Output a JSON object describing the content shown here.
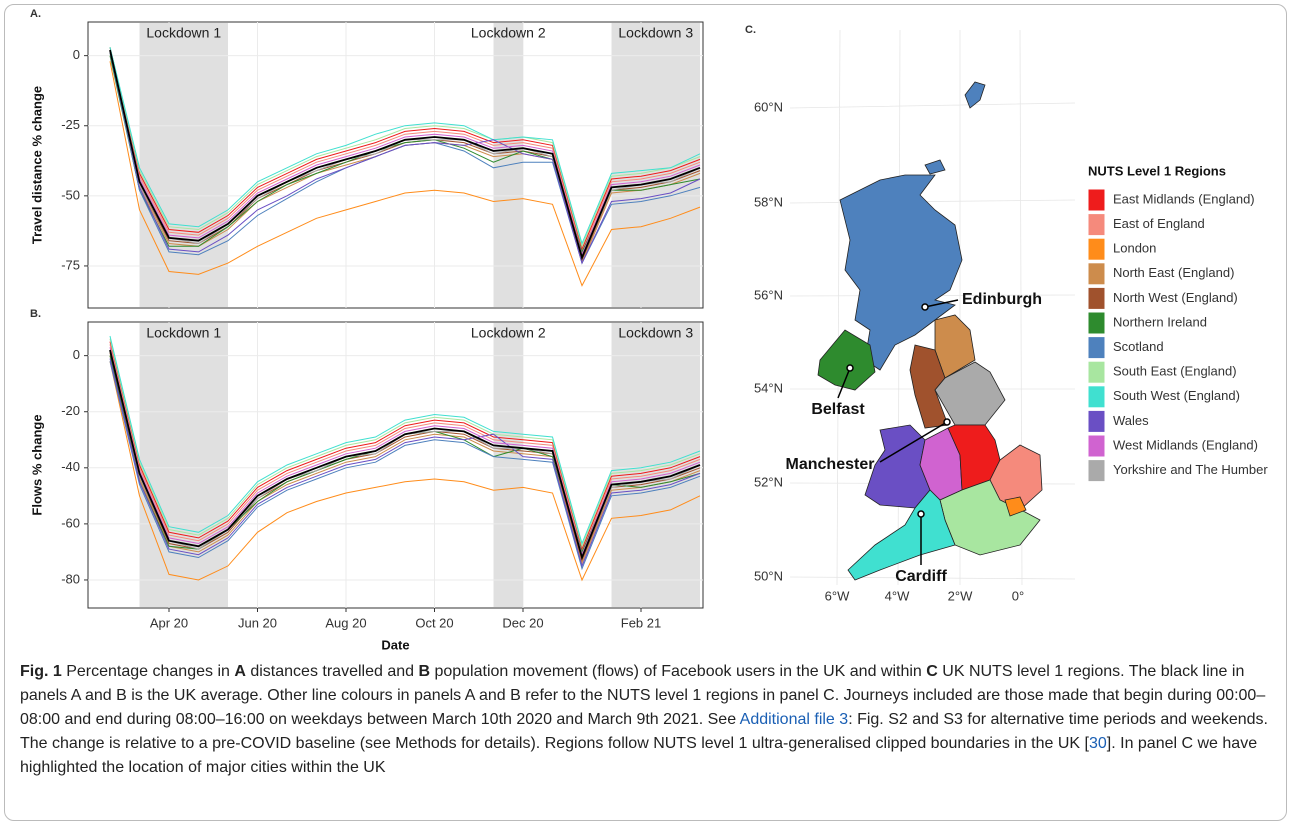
{
  "chart_data": [
    {
      "type": "line",
      "panel_label": "A.",
      "y_label": "Travel distance % change",
      "ylim": [
        -90,
        12
      ],
      "yticks": [
        0,
        -25,
        -50,
        -75
      ],
      "grid": true,
      "spans": [
        {
          "label": "Lockdown 1",
          "start": 1,
          "end": 4
        },
        {
          "label": "Lockdown 2",
          "start": 13,
          "end": 14
        },
        {
          "label": "Lockdown 3",
          "start": 17,
          "end": 20
        }
      ],
      "series": [
        {
          "name": "East Midlands (England)",
          "color": "#ee1c1c",
          "values": [
            3,
            -42,
            -62,
            -63,
            -57,
            -47,
            -42,
            -37,
            -34,
            -31,
            -27,
            -26,
            -27,
            -31,
            -30,
            -32,
            -69,
            -44,
            -43,
            -41,
            -37
          ]
        },
        {
          "name": "East of England",
          "color": "#f58a7c",
          "values": [
            2,
            -43,
            -63,
            -64,
            -58,
            -48,
            -43,
            -38,
            -35,
            -32,
            -28,
            -27,
            -28,
            -32,
            -31,
            -33,
            -70,
            -45,
            -44,
            -42,
            -38
          ]
        },
        {
          "name": "London",
          "color": "#ff8c1a",
          "values": [
            -2,
            -55,
            -77,
            -78,
            -74,
            -68,
            -63,
            -58,
            -55,
            -52,
            -49,
            -48,
            -49,
            -52,
            -51,
            -53,
            -82,
            -62,
            -61,
            -58,
            -54
          ]
        },
        {
          "name": "North East (England)",
          "color": "#cd8c4c",
          "values": [
            1,
            -47,
            -67,
            -68,
            -62,
            -52,
            -47,
            -42,
            -39,
            -36,
            -32,
            -31,
            -32,
            -36,
            -35,
            -37,
            -74,
            -49,
            -48,
            -46,
            -42
          ]
        },
        {
          "name": "North West (England)",
          "color": "#a0522d",
          "values": [
            2,
            -46,
            -66,
            -67,
            -61,
            -51,
            -46,
            -41,
            -38,
            -35,
            -31,
            -30,
            -31,
            -35,
            -34,
            -36,
            -73,
            -48,
            -47,
            -45,
            -41
          ]
        },
        {
          "name": "Northern Ireland",
          "color": "#2e8b2e",
          "values": [
            0,
            -48,
            -68,
            -68,
            -61,
            -52,
            -46,
            -42,
            -38,
            -34,
            -31,
            -30,
            -33,
            -38,
            -34,
            -37,
            -70,
            -48,
            -48,
            -46,
            -44
          ]
        },
        {
          "name": "Scotland",
          "color": "#4e81bd",
          "values": [
            1,
            -48,
            -70,
            -71,
            -66,
            -57,
            -51,
            -45,
            -40,
            -36,
            -32,
            -31,
            -34,
            -40,
            -38,
            -38,
            -74,
            -53,
            -52,
            -50,
            -47
          ]
        },
        {
          "name": "South East (England)",
          "color": "#a8e6a0",
          "values": [
            3,
            -41,
            -61,
            -62,
            -56,
            -46,
            -41,
            -36,
            -33,
            -30,
            -26,
            -25,
            -26,
            -30,
            -29,
            -31,
            -68,
            -43,
            -42,
            -40,
            -36
          ]
        },
        {
          "name": "South West (England)",
          "color": "#40e0d0",
          "values": [
            3,
            -40,
            -60,
            -61,
            -55,
            -45,
            -40,
            -35,
            -32,
            -28,
            -25,
            -24,
            -25,
            -30,
            -29,
            -30,
            -67,
            -42,
            -41,
            -40,
            -35
          ]
        },
        {
          "name": "Wales",
          "color": "#6a4fc4",
          "values": [
            2,
            -47,
            -69,
            -70,
            -64,
            -55,
            -50,
            -44,
            -40,
            -36,
            -32,
            -31,
            -32,
            -30,
            -35,
            -37,
            -74,
            -52,
            -51,
            -49,
            -44
          ]
        },
        {
          "name": "West Midlands (England)",
          "color": "#d063d0",
          "values": [
            2,
            -44,
            -64,
            -65,
            -59,
            -49,
            -44,
            -39,
            -36,
            -33,
            -29,
            -28,
            -29,
            -33,
            -32,
            -34,
            -71,
            -46,
            -45,
            -43,
            -39
          ]
        },
        {
          "name": "Yorkshire and The Humber",
          "color": "#aaaaaa",
          "values": [
            2,
            -46,
            -65,
            -67,
            -60,
            -51,
            -45,
            -41,
            -37,
            -35,
            -30,
            -30,
            -30,
            -35,
            -33,
            -36,
            -72,
            -48,
            -46,
            -45,
            -40
          ]
        },
        {
          "name": "UK average",
          "color": "#000000",
          "values": [
            2,
            -45,
            -65,
            -66,
            -60,
            -50,
            -45,
            -40,
            -37,
            -34,
            -30,
            -29,
            -30,
            -34,
            -33,
            -35,
            -72,
            -47,
            -46,
            -44,
            -40
          ]
        }
      ]
    },
    {
      "type": "line",
      "panel_label": "B.",
      "y_label": "Flows % change",
      "x_label": "Date",
      "categories": [
        null,
        null,
        "Apr 20",
        null,
        null,
        "Jun 20",
        null,
        null,
        "Aug 20",
        null,
        null,
        "Oct 20",
        null,
        null,
        "Dec 20",
        null,
        null,
        null,
        "Feb 21",
        null,
        null
      ],
      "ylim": [
        -90,
        12
      ],
      "yticks": [
        0,
        -20,
        -40,
        -60,
        -80
      ],
      "grid": true,
      "spans": [
        {
          "label": "Lockdown 1",
          "start": 1,
          "end": 4
        },
        {
          "label": "Lockdown 2",
          "start": 13,
          "end": 14
        },
        {
          "label": "Lockdown 3",
          "start": 17,
          "end": 20
        }
      ],
      "series": [
        {
          "name": "East Midlands (England)",
          "color": "#ee1c1c",
          "values": [
            5,
            -39,
            -63,
            -65,
            -59,
            -47,
            -41,
            -37,
            -33,
            -31,
            -25,
            -23,
            -24,
            -29,
            -30,
            -31,
            -69,
            -43,
            -42,
            -40,
            -36
          ]
        },
        {
          "name": "East of England",
          "color": "#f58a7c",
          "values": [
            4,
            -40,
            -64,
            -66,
            -60,
            -48,
            -42,
            -38,
            -34,
            -32,
            -26,
            -24,
            -25,
            -30,
            -31,
            -32,
            -70,
            -44,
            -43,
            -41,
            -37
          ]
        },
        {
          "name": "London",
          "color": "#ff8c1a",
          "values": [
            -2,
            -50,
            -78,
            -80,
            -75,
            -63,
            -56,
            -52,
            -49,
            -47,
            -45,
            -44,
            -45,
            -48,
            -47,
            -49,
            -80,
            -58,
            -57,
            -55,
            -50
          ]
        },
        {
          "name": "North East (England)",
          "color": "#cd8c4c",
          "values": [
            0,
            -44,
            -68,
            -70,
            -64,
            -52,
            -46,
            -42,
            -38,
            -36,
            -30,
            -28,
            -29,
            -34,
            -35,
            -36,
            -74,
            -48,
            -47,
            -45,
            -41
          ]
        },
        {
          "name": "North West (England)",
          "color": "#a0522d",
          "values": [
            1,
            -43,
            -67,
            -69,
            -63,
            -51,
            -45,
            -41,
            -37,
            -35,
            -29,
            -27,
            -28,
            -33,
            -34,
            -35,
            -73,
            -47,
            -46,
            -44,
            -40
          ]
        },
        {
          "name": "Northern Ireland",
          "color": "#2e8b2e",
          "values": [
            0,
            -45,
            -68,
            -69,
            -62,
            -52,
            -45,
            -41,
            -37,
            -34,
            -28,
            -27,
            -30,
            -36,
            -33,
            -36,
            -70,
            -46,
            -47,
            -45,
            -42
          ]
        },
        {
          "name": "Scotland",
          "color": "#4e81bd",
          "values": [
            -2,
            -46,
            -70,
            -72,
            -66,
            -54,
            -48,
            -44,
            -40,
            -38,
            -32,
            -30,
            -31,
            -36,
            -37,
            -38,
            -76,
            -50,
            -49,
            -47,
            -43
          ]
        },
        {
          "name": "South East (England)",
          "color": "#a8e6a0",
          "values": [
            6,
            -38,
            -62,
            -64,
            -58,
            -46,
            -40,
            -36,
            -32,
            -30,
            -24,
            -22,
            -23,
            -28,
            -29,
            -30,
            -68,
            -42,
            -41,
            -39,
            -35
          ]
        },
        {
          "name": "South West (England)",
          "color": "#40e0d0",
          "values": [
            7,
            -37,
            -61,
            -63,
            -57,
            -45,
            -39,
            -35,
            -31,
            -29,
            -23,
            -21,
            -22,
            -27,
            -28,
            -29,
            -67,
            -41,
            -40,
            -38,
            -34
          ]
        },
        {
          "name": "Wales",
          "color": "#6a4fc4",
          "values": [
            -1,
            -45,
            -69,
            -71,
            -65,
            -53,
            -47,
            -43,
            -39,
            -37,
            -31,
            -29,
            -30,
            -28,
            -36,
            -37,
            -75,
            -49,
            -48,
            -46,
            -42
          ]
        },
        {
          "name": "West Midlands (England)",
          "color": "#d063d0",
          "values": [
            3,
            -41,
            -65,
            -67,
            -61,
            -49,
            -43,
            -39,
            -35,
            -33,
            -27,
            -25,
            -26,
            -31,
            -32,
            -33,
            -71,
            -45,
            -44,
            -42,
            -38
          ]
        },
        {
          "name": "Yorkshire and The Humber",
          "color": "#aaaaaa",
          "values": [
            2,
            -43,
            -66,
            -69,
            -62,
            -51,
            -44,
            -41,
            -36,
            -35,
            -28,
            -27,
            -27,
            -33,
            -33,
            -35,
            -72,
            -47,
            -45,
            -44,
            -39
          ]
        },
        {
          "name": "UK average",
          "color": "#000000",
          "values": [
            2,
            -42,
            -66,
            -68,
            -62,
            -50,
            -44,
            -40,
            -36,
            -34,
            -28,
            -26,
            -27,
            -32,
            -33,
            -34,
            -72,
            -46,
            -45,
            -43,
            -39
          ]
        }
      ]
    },
    {
      "type": "map",
      "panel_label": "C.",
      "legend_title": "NUTS Level 1 Regions",
      "lat_labels": [
        "60°N",
        "58°N",
        "56°N",
        "54°N",
        "52°N",
        "50°N"
      ],
      "lon_labels": [
        "6°W",
        "4°W",
        "2°W",
        "0°"
      ],
      "cities": [
        "Edinburgh",
        "Belfast",
        "Manchester",
        "Cardiff"
      ],
      "regions": [
        {
          "name": "East Midlands (England)",
          "color": "#ee1c1c"
        },
        {
          "name": "East of England",
          "color": "#f58a7c"
        },
        {
          "name": "London",
          "color": "#ff8c1a"
        },
        {
          "name": "North East (England)",
          "color": "#cd8c4c"
        },
        {
          "name": "North West (England)",
          "color": "#a0522d"
        },
        {
          "name": "Northern Ireland",
          "color": "#2e8b2e"
        },
        {
          "name": "Scotland",
          "color": "#4e81bd"
        },
        {
          "name": "South East (England)",
          "color": "#a8e6a0"
        },
        {
          "name": "South West (England)",
          "color": "#40e0d0"
        },
        {
          "name": "Wales",
          "color": "#6a4fc4"
        },
        {
          "name": "West Midlands (England)",
          "color": "#d063d0"
        },
        {
          "name": "Yorkshire and The Humber",
          "color": "#aaaaaa"
        }
      ]
    }
  ],
  "caption": [
    {
      "text": "Fig. 1",
      "style": "bold"
    },
    {
      "text": "  Percentage changes in "
    },
    {
      "text": "A",
      "style": "bold"
    },
    {
      "text": " distances travelled and "
    },
    {
      "text": "B",
      "style": "bold"
    },
    {
      "text": " population movement (flows) of Facebook users in the UK and within "
    },
    {
      "text": "C",
      "style": "bold"
    },
    {
      "text": " UK NUTS level 1 regions. The black line in panels A and B is the UK average. Other line colours in panels A and B refer to the NUTS level 1 regions in panel C. Journeys included are those made that begin during 00:00–08:00 and end during 08:00–16:00 on weekdays between March 10th 2020 and March 9th 2021. See "
    },
    {
      "text": "Additional file",
      "style": "link"
    },
    {
      "text": " "
    },
    {
      "text": "3",
      "style": "link"
    },
    {
      "text": ": Fig. S2 and S3 for alternative time periods and weekends. The change is relative to a pre-COVID baseline (see Methods for details). Regions follow NUTS level 1 ultra-generalised clipped boundaries in the UK ["
    },
    {
      "text": "30",
      "style": "link"
    },
    {
      "text": "]. In panel C we have highlighted the location of major cities within the UK"
    }
  ]
}
